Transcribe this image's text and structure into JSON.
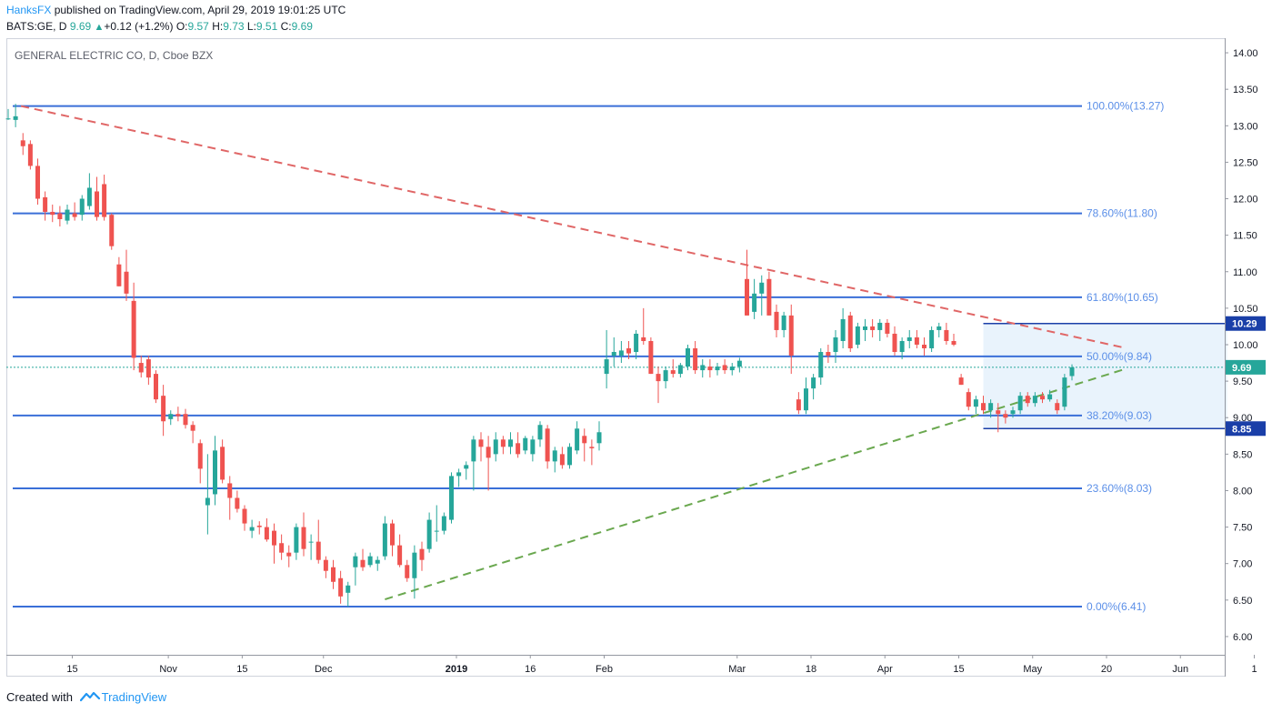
{
  "header": {
    "author": "HanksFX",
    "publish_text": " published on TradingView.com, April 29, 2019 19:01:25 UTC",
    "symbol": "BATS:GE, D",
    "last": "9.69",
    "change_arrow": "▲",
    "change": "+0.12 (+1.2%)",
    "o_label": "O:",
    "o": "9.57",
    "h_label": "H:",
    "h": "9.73",
    "l_label": "L:",
    "l": "9.51",
    "c_label": "C:",
    "c": "9.69"
  },
  "footer": {
    "created_with": "Created with",
    "brand": "TradingView",
    "logo_icon": "tradingview-logo-icon"
  },
  "colors": {
    "up": "#26a69a",
    "down": "#ef5350",
    "fib_line": "#3a6fd8",
    "fib_label": "#5b8fe8",
    "resistance": "#e06666",
    "support": "#6aa84f",
    "box_fill": "#e3f0fb",
    "price_line": "#26a69a"
  },
  "chart_data": {
    "type": "candlestick",
    "title": "GENERAL ELECTRIC CO, D, Cboe BZX",
    "y_axis": {
      "ylim": [
        5.75,
        14.2
      ],
      "ticks": [
        "14.00",
        "13.50",
        "13.00",
        "12.50",
        "12.00",
        "11.50",
        "11.00",
        "10.50",
        "10.00",
        "9.50",
        "9.00",
        "8.50",
        "8.00",
        "7.50",
        "7.00",
        "6.50",
        "6.00"
      ],
      "side": "right"
    },
    "x_axis": {
      "ticks": [
        {
          "label": "15",
          "bar": 4
        },
        {
          "label": "Nov",
          "bar": 17
        },
        {
          "label": "15",
          "bar": 27
        },
        {
          "label": "Dec",
          "bar": 38
        },
        {
          "label": "2019",
          "bar": 56
        },
        {
          "label": "16",
          "bar": 66
        },
        {
          "label": "Feb",
          "bar": 76
        },
        {
          "label": "Mar",
          "bar": 94
        },
        {
          "label": "18",
          "bar": 104
        },
        {
          "label": "Apr",
          "bar": 114
        },
        {
          "label": "15",
          "bar": 124
        },
        {
          "label": "May",
          "bar": 134
        },
        {
          "label": "20",
          "bar": 144
        },
        {
          "label": "Jun",
          "bar": 154
        },
        {
          "label": "1",
          "bar": 164
        }
      ],
      "bars_visible": 165
    },
    "fib_levels": [
      {
        "label": "100.00%(13.27)",
        "value": 13.27
      },
      {
        "label": "78.60%(11.80)",
        "value": 11.8
      },
      {
        "label": "61.80%(10.65)",
        "value": 10.65
      },
      {
        "label": "50.00%(9.84)",
        "value": 9.84
      },
      {
        "label": "38.20%(9.03)",
        "value": 9.03
      },
      {
        "label": "23.60%(8.03)",
        "value": 8.03
      },
      {
        "label": "0.00%(6.41)",
        "value": 6.41
      }
    ],
    "resistance_trendline": {
      "from": {
        "bar": 1,
        "value": 13.27
      },
      "to": {
        "bar": 151,
        "value": 9.96
      }
    },
    "support_trendline": {
      "from": {
        "bar": 51,
        "value": 6.51
      },
      "to": {
        "bar": 151,
        "value": 9.66
      }
    },
    "range_box": {
      "from_bar": 132,
      "to_bar": 165,
      "top": 10.29,
      "bottom": 8.85,
      "top_label": "10.29",
      "bottom_label": "8.85"
    },
    "last_price": {
      "value": 9.69,
      "label": "9.69"
    },
    "candles": [
      [
        13.1,
        13.23,
        13.08,
        13.1
      ],
      [
        13.08,
        13.3,
        12.98,
        13.13
      ],
      [
        12.8,
        12.9,
        12.6,
        12.72
      ],
      [
        12.75,
        12.8,
        12.4,
        12.45
      ],
      [
        12.45,
        12.55,
        11.92,
        12.0
      ],
      [
        12.02,
        12.1,
        11.7,
        11.82
      ],
      [
        11.82,
        11.92,
        11.68,
        11.78
      ],
      [
        11.8,
        11.9,
        11.62,
        11.72
      ],
      [
        11.7,
        11.92,
        11.65,
        11.85
      ],
      [
        11.8,
        11.95,
        11.7,
        11.75
      ],
      [
        11.78,
        12.05,
        11.7,
        12.0
      ],
      [
        11.9,
        12.35,
        11.85,
        12.15
      ],
      [
        12.1,
        12.3,
        11.7,
        11.75
      ],
      [
        12.2,
        12.33,
        11.7,
        11.75
      ],
      [
        11.78,
        11.8,
        11.3,
        11.35
      ],
      [
        11.1,
        11.2,
        10.8,
        10.8
      ],
      [
        11.0,
        11.3,
        10.6,
        10.7
      ],
      [
        10.6,
        10.85,
        9.65,
        9.82
      ],
      [
        9.75,
        9.85,
        9.55,
        9.62
      ],
      [
        9.8,
        9.85,
        9.45,
        9.55
      ],
      [
        9.6,
        9.65,
        9.2,
        9.25
      ],
      [
        9.3,
        9.45,
        8.75,
        8.95
      ],
      [
        8.98,
        9.1,
        8.9,
        9.05
      ],
      [
        9.05,
        9.15,
        8.95,
        9.02
      ],
      [
        9.05,
        9.12,
        8.85,
        8.9
      ],
      [
        8.9,
        8.95,
        8.65,
        8.82
      ],
      [
        8.65,
        8.7,
        8.1,
        8.3
      ],
      [
        7.8,
        8.5,
        7.4,
        7.9
      ],
      [
        7.95,
        8.75,
        7.8,
        8.55
      ],
      [
        8.6,
        8.7,
        8.1,
        8.15
      ],
      [
        8.1,
        8.2,
        7.6,
        7.9
      ],
      [
        7.9,
        8.0,
        7.7,
        7.75
      ],
      [
        7.75,
        7.8,
        7.45,
        7.55
      ],
      [
        7.45,
        7.6,
        7.35,
        7.5
      ],
      [
        7.52,
        7.58,
        7.4,
        7.5
      ],
      [
        7.5,
        7.62,
        7.3,
        7.33
      ],
      [
        7.45,
        7.55,
        7.0,
        7.25
      ],
      [
        7.28,
        7.4,
        7.05,
        7.15
      ],
      [
        7.15,
        7.25,
        6.95,
        7.1
      ],
      [
        7.15,
        7.55,
        7.05,
        7.5
      ],
      [
        7.5,
        7.7,
        7.1,
        7.2
      ],
      [
        7.3,
        7.4,
        7.05,
        7.3
      ],
      [
        7.3,
        7.6,
        7.0,
        7.05
      ],
      [
        7.05,
        7.1,
        6.8,
        6.9
      ],
      [
        6.95,
        7.05,
        6.65,
        6.75
      ],
      [
        6.8,
        6.9,
        6.45,
        6.55
      ],
      [
        6.6,
        6.75,
        6.41,
        6.7
      ],
      [
        6.95,
        7.15,
        6.7,
        7.1
      ],
      [
        7.05,
        7.2,
        6.9,
        6.95
      ],
      [
        6.98,
        7.15,
        6.95,
        7.1
      ],
      [
        7.0,
        7.1,
        6.9,
        7.05
      ],
      [
        7.1,
        7.65,
        7.05,
        7.55
      ],
      [
        7.55,
        7.6,
        7.1,
        7.25
      ],
      [
        7.25,
        7.4,
        6.95,
        6.98
      ],
      [
        6.98,
        7.05,
        6.75,
        6.8
      ],
      [
        6.8,
        7.25,
        6.52,
        7.15
      ],
      [
        7.2,
        7.3,
        6.9,
        7.05
      ],
      [
        7.2,
        7.7,
        7.15,
        7.6
      ],
      [
        7.45,
        7.8,
        7.3,
        7.45
      ],
      [
        7.45,
        7.7,
        7.4,
        7.65
      ],
      [
        7.6,
        8.25,
        7.55,
        8.2
      ],
      [
        8.2,
        8.3,
        8.05,
        8.25
      ],
      [
        8.3,
        8.4,
        8.15,
        8.35
      ],
      [
        8.4,
        8.75,
        8.0,
        8.7
      ],
      [
        8.7,
        8.8,
        8.4,
        8.6
      ],
      [
        8.6,
        8.75,
        8.0,
        8.45
      ],
      [
        8.5,
        8.8,
        8.4,
        8.7
      ],
      [
        8.7,
        8.75,
        8.5,
        8.6
      ],
      [
        8.6,
        8.8,
        8.5,
        8.7
      ],
      [
        8.65,
        8.8,
        8.45,
        8.5
      ],
      [
        8.55,
        8.75,
        8.5,
        8.72
      ],
      [
        8.5,
        8.75,
        8.4,
        8.7
      ],
      [
        8.7,
        8.95,
        8.6,
        8.9
      ],
      [
        8.85,
        8.9,
        8.3,
        8.4
      ],
      [
        8.4,
        8.6,
        8.25,
        8.55
      ],
      [
        8.5,
        8.6,
        8.3,
        8.35
      ],
      [
        8.35,
        8.65,
        8.3,
        8.6
      ],
      [
        8.55,
        8.95,
        8.5,
        8.85
      ],
      [
        8.75,
        8.85,
        8.4,
        8.65
      ],
      [
        8.6,
        8.7,
        8.35,
        8.58
      ],
      [
        8.65,
        8.95,
        8.55,
        8.8
      ],
      [
        9.6,
        10.2,
        9.4,
        9.8
      ],
      [
        9.85,
        10.1,
        9.7,
        9.9
      ],
      [
        9.85,
        10.05,
        9.75,
        9.92
      ],
      [
        9.95,
        10.05,
        9.8,
        9.88
      ],
      [
        9.9,
        10.2,
        9.8,
        10.15
      ],
      [
        10.1,
        10.5,
        10.0,
        10.05
      ],
      [
        10.05,
        10.1,
        9.6,
        9.6
      ],
      [
        9.6,
        9.7,
        9.2,
        9.5
      ],
      [
        9.5,
        9.7,
        9.4,
        9.65
      ],
      [
        9.65,
        9.8,
        9.55,
        9.6
      ],
      [
        9.6,
        9.75,
        9.55,
        9.72
      ],
      [
        9.7,
        10.0,
        9.65,
        9.95
      ],
      [
        9.95,
        10.05,
        9.6,
        9.65
      ],
      [
        9.65,
        9.8,
        9.55,
        9.72
      ],
      [
        9.7,
        9.8,
        9.55,
        9.65
      ],
      [
        9.65,
        9.75,
        9.58,
        9.7
      ],
      [
        9.72,
        9.8,
        9.6,
        9.65
      ],
      [
        9.65,
        9.75,
        9.58,
        9.7
      ],
      [
        9.7,
        9.82,
        9.62,
        9.78
      ],
      [
        10.9,
        11.3,
        10.4,
        10.4
      ],
      [
        10.45,
        10.9,
        10.35,
        10.7
      ],
      [
        10.7,
        10.95,
        10.4,
        10.85
      ],
      [
        10.9,
        11.0,
        10.4,
        10.4
      ],
      [
        10.45,
        10.55,
        10.1,
        10.2
      ],
      [
        10.2,
        10.45,
        10.1,
        10.4
      ],
      [
        10.4,
        10.55,
        9.6,
        9.85
      ],
      [
        9.25,
        9.35,
        9.05,
        9.1
      ],
      [
        9.1,
        9.55,
        9.05,
        9.4
      ],
      [
        9.4,
        9.6,
        9.25,
        9.55
      ],
      [
        9.55,
        9.95,
        9.45,
        9.9
      ],
      [
        9.9,
        10.0,
        9.75,
        9.85
      ],
      [
        9.9,
        10.2,
        9.75,
        10.1
      ],
      [
        10.05,
        10.5,
        9.95,
        10.35
      ],
      [
        10.4,
        10.45,
        9.9,
        9.95
      ],
      [
        10.0,
        10.3,
        9.95,
        10.25
      ],
      [
        10.2,
        10.35,
        10.05,
        10.25
      ],
      [
        10.25,
        10.35,
        10.1,
        10.2
      ],
      [
        10.2,
        10.35,
        10.05,
        10.3
      ],
      [
        10.3,
        10.35,
        10.1,
        10.15
      ],
      [
        10.15,
        10.25,
        9.85,
        9.9
      ],
      [
        9.9,
        10.1,
        9.8,
        10.05
      ],
      [
        10.05,
        10.2,
        9.95,
        10.1
      ],
      [
        10.1,
        10.2,
        9.95,
        10.0
      ],
      [
        10.0,
        10.1,
        9.85,
        9.95
      ],
      [
        9.95,
        10.25,
        9.9,
        10.2
      ],
      [
        10.2,
        10.3,
        10.1,
        10.25
      ],
      [
        10.2,
        10.3,
        10.0,
        10.05
      ],
      [
        10.05,
        10.15,
        9.98,
        10.0
      ],
      [
        9.55,
        9.6,
        9.45,
        9.45
      ],
      [
        9.35,
        9.4,
        9.1,
        9.15
      ],
      [
        9.15,
        9.3,
        9.05,
        9.25
      ],
      [
        9.2,
        9.3,
        9.05,
        9.1
      ],
      [
        9.1,
        9.25,
        9.0,
        9.2
      ],
      [
        9.1,
        9.2,
        8.8,
        9.05
      ],
      [
        9.05,
        9.1,
        8.92,
        9.0
      ],
      [
        9.05,
        9.15,
        9.0,
        9.1
      ],
      [
        9.1,
        9.35,
        9.05,
        9.3
      ],
      [
        9.3,
        9.35,
        9.15,
        9.2
      ],
      [
        9.2,
        9.35,
        9.15,
        9.3
      ],
      [
        9.3,
        9.35,
        9.2,
        9.25
      ],
      [
        9.25,
        9.38,
        9.22,
        9.32
      ],
      [
        9.2,
        9.25,
        9.05,
        9.1
      ],
      [
        9.15,
        9.6,
        9.1,
        9.55
      ],
      [
        9.57,
        9.73,
        9.51,
        9.69
      ]
    ],
    "candle_start_bar": 0
  }
}
